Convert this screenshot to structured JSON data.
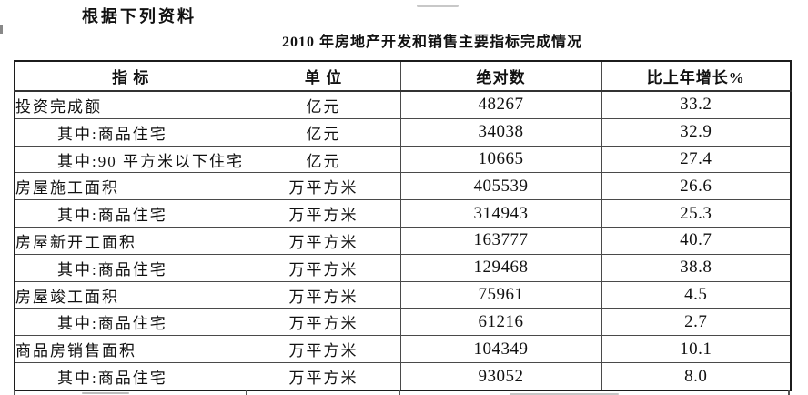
{
  "page": {
    "lead": "根据下列资料",
    "title": "2010 年房地产开发和销售主要指标完成情况"
  },
  "table": {
    "headers": [
      "指  标",
      "单  位",
      "绝对数",
      "比上年增长%"
    ],
    "rows": [
      {
        "indicator": "投资完成额",
        "indent": false,
        "unit": "亿元",
        "absolute": "48267",
        "growth": "33.2"
      },
      {
        "indicator": "其中:商品住宅",
        "indent": true,
        "unit": "亿元",
        "absolute": "34038",
        "growth": "32.9"
      },
      {
        "indicator": "其中:90 平方米以下住宅",
        "indent": true,
        "unit": "亿元",
        "absolute": "10665",
        "growth": "27.4"
      },
      {
        "indicator": "房屋施工面积",
        "indent": false,
        "unit": "万平方米",
        "absolute": "405539",
        "growth": "26.6"
      },
      {
        "indicator": "其中:商品住宅",
        "indent": true,
        "unit": "万平方米",
        "absolute": "314943",
        "growth": "25.3"
      },
      {
        "indicator": "房屋新开工面积",
        "indent": false,
        "unit": "万平方米",
        "absolute": "163777",
        "growth": "40.7"
      },
      {
        "indicator": "其中:商品住宅",
        "indent": true,
        "unit": "万平方米",
        "absolute": "129468",
        "growth": "38.8"
      },
      {
        "indicator": "房屋竣工面积",
        "indent": false,
        "unit": "万平方米",
        "absolute": "75961",
        "growth": "4.5"
      },
      {
        "indicator": "其中:商品住宅",
        "indent": true,
        "unit": "万平方米",
        "absolute": "61216",
        "growth": "2.7"
      },
      {
        "indicator": "商品房销售面积",
        "indent": false,
        "unit": "万平方米",
        "absolute": "104349",
        "growth": "10.1"
      },
      {
        "indicator": "其中:商品住宅",
        "indent": true,
        "unit": "万平方米",
        "absolute": "93052",
        "growth": "8.0"
      }
    ]
  },
  "colors": {
    "background": "#ffffff",
    "text": "#111111",
    "border_outer": "#1c1c1c",
    "border_inner": "#4a4a4a"
  }
}
